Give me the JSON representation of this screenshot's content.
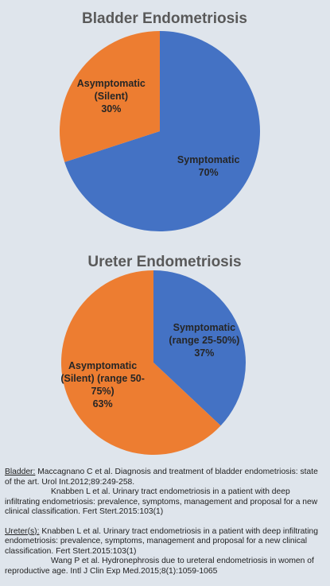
{
  "chart_data": [
    {
      "type": "pie",
      "title": "Bladder Endometriosis",
      "categories": [
        "Symptomatic",
        "Asymptomatic (Silent)"
      ],
      "values": [
        70,
        30
      ],
      "value_labels": [
        "70%",
        "30%"
      ],
      "colors": [
        "#4472c4",
        "#ed7d31"
      ]
    },
    {
      "type": "pie",
      "title": "Ureter Endometriosis",
      "categories": [
        "Symptomatic (range 25-50%)",
        "Asymptomatic (Silent) (range 50-75%)"
      ],
      "values": [
        37,
        63
      ],
      "value_labels": [
        "37%",
        "63%"
      ],
      "colors": [
        "#4472c4",
        "#ed7d31"
      ]
    }
  ],
  "references": [
    {
      "label": "Bladder:",
      "citations": [
        "Maccagnano C et al. Diagnosis and treatment of bladder endometriosis: state of the art. Urol Int.2012;89:249-258.",
        "Knabben L et al. Urinary tract endometriosis in a patient with deep infiltrating endometriosis: prevalence, symptoms, management and proposal for a new clinical classification. Fert Stert.2015:103(1)"
      ]
    },
    {
      "label": "Ureter(s):",
      "citations": [
        "Knabben L et al. Urinary tract endometriosis in a patient with deep infiltrating endometriosis: prevalence, symptoms, management and proposal for a new clinical classification. Fert Stert.2015:103(1)",
        "Wang P et al. Hydronephrosis due to ureteral endometriosis in women of reproductive age. Intl J Clin Exp Med.2015;8(1):1059-1065"
      ]
    }
  ]
}
